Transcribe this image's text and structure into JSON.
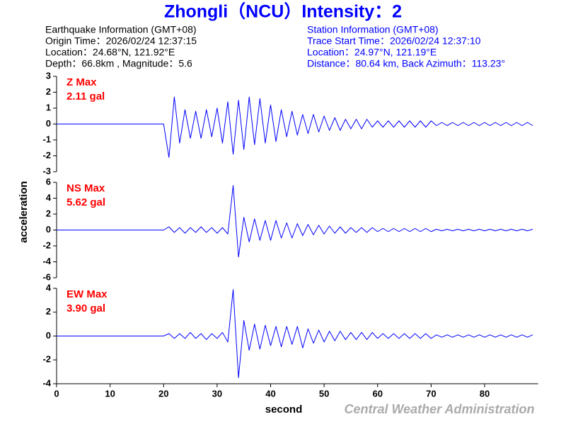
{
  "title": "Zhongli（NCU）Intensity：2",
  "info_left": [
    "Earthquake Information  (GMT+08)",
    "Origin Time：2026/02/24 12:37:15",
    "Location：24.68°N, 121.92°E",
    "Depth：66.8km , Magnitude：5.6"
  ],
  "info_right": [
    "Station Information  (GMT+08)",
    "Trace Start Time：2026/02/24 12:37:10",
    "Location：24.97°N, 121.19°E",
    "Distance：80.64 km, Back Azimuth：113.23°"
  ],
  "ylabel": "acceleration",
  "xlabel": "second",
  "credit": "Central Weather Administration",
  "chart_data": [
    {
      "type": "line",
      "label": "Z Max",
      "max_label": "2.11 gal",
      "color": "#0000ff",
      "label_color": "#ff0000",
      "xlim": [
        0,
        90
      ],
      "ylim": [
        -3,
        3
      ],
      "yticks": [
        -3,
        -2,
        -1,
        0,
        1,
        2,
        3
      ],
      "x": [
        0,
        20,
        21,
        22,
        23,
        24,
        25,
        26,
        27,
        28,
        29,
        30,
        31,
        32,
        33,
        34,
        35,
        36,
        37,
        38,
        39,
        40,
        41,
        42,
        43,
        44,
        45,
        46,
        47,
        48,
        49,
        50,
        51,
        52,
        53,
        54,
        55,
        56,
        57,
        58,
        59,
        60,
        61,
        62,
        63,
        64,
        65,
        66,
        67,
        68,
        69,
        70,
        71,
        72,
        73,
        74,
        75,
        76,
        77,
        78,
        79,
        80,
        81,
        82,
        83,
        84,
        85,
        86,
        87,
        88,
        89
      ],
      "values": [
        0,
        0,
        -2.1,
        1.7,
        -1.2,
        0.9,
        -0.9,
        0.8,
        -0.9,
        0.9,
        -0.8,
        1.0,
        -1.2,
        1.4,
        -1.9,
        1.5,
        -1.6,
        1.7,
        -1.3,
        1.6,
        -1.2,
        1.2,
        -1.1,
        0.9,
        -0.8,
        0.8,
        -0.7,
        0.6,
        -0.6,
        0.6,
        -0.5,
        0.5,
        -0.4,
        0.4,
        -0.4,
        0.3,
        -0.3,
        0.3,
        -0.3,
        0.3,
        -0.2,
        0.2,
        -0.2,
        0.2,
        -0.2,
        0.2,
        -0.2,
        0.2,
        -0.2,
        0.2,
        -0.2,
        0.2,
        -0.1,
        0.1,
        -0.1,
        0.1,
        -0.1,
        0.1,
        -0.1,
        0.1,
        -0.1,
        0.1,
        -0.1,
        0.1,
        -0.1,
        0.1,
        -0.1,
        0.1,
        -0.1,
        0.1,
        -0.1
      ]
    },
    {
      "type": "line",
      "label": "NS Max",
      "max_label": "5.62 gal",
      "color": "#0000ff",
      "label_color": "#ff0000",
      "xlim": [
        0,
        90
      ],
      "ylim": [
        -6,
        6
      ],
      "yticks": [
        -6,
        -4,
        -2,
        0,
        2,
        4,
        6
      ],
      "x": [
        0,
        20,
        21,
        22,
        23,
        24,
        25,
        26,
        27,
        28,
        29,
        30,
        31,
        32,
        33,
        34,
        35,
        36,
        37,
        38,
        39,
        40,
        41,
        42,
        43,
        44,
        45,
        46,
        47,
        48,
        49,
        50,
        51,
        52,
        53,
        54,
        55,
        56,
        57,
        58,
        59,
        60,
        61,
        62,
        63,
        64,
        65,
        66,
        67,
        68,
        69,
        70,
        71,
        72,
        73,
        74,
        75,
        76,
        77,
        78,
        79,
        80,
        81,
        82,
        83,
        84,
        85,
        86,
        87,
        88,
        89
      ],
      "values": [
        0,
        0,
        0.4,
        -0.3,
        0.3,
        -0.4,
        0.3,
        -0.3,
        0.4,
        -0.3,
        0.3,
        -0.4,
        0.3,
        -0.5,
        5.6,
        -3.4,
        1.6,
        -1.5,
        1.4,
        -1.3,
        1.2,
        -1.3,
        1.2,
        -1.0,
        0.9,
        -1.0,
        0.8,
        -0.7,
        0.7,
        -0.6,
        0.6,
        -0.5,
        0.5,
        -0.4,
        0.4,
        -0.4,
        0.3,
        -0.3,
        0.3,
        -0.3,
        0.3,
        -0.2,
        0.2,
        -0.2,
        0.2,
        -0.2,
        0.2,
        -0.2,
        0.2,
        -0.2,
        0.2,
        -0.2,
        0.1,
        -0.1,
        0.1,
        -0.1,
        0.1,
        -0.1,
        0.1,
        -0.1,
        0.1,
        -0.1,
        0.1,
        -0.1,
        0.1,
        -0.1,
        0.1,
        -0.1,
        0.1,
        -0.1,
        0.1
      ]
    },
    {
      "type": "line",
      "label": "EW Max",
      "max_label": "3.90 gal",
      "color": "#0000ff",
      "label_color": "#ff0000",
      "xlim": [
        0,
        90
      ],
      "ylim": [
        -4,
        4
      ],
      "yticks": [
        -4,
        -2,
        0,
        2,
        4
      ],
      "xticks": [
        0,
        10,
        20,
        30,
        40,
        50,
        60,
        70,
        80
      ],
      "x": [
        0,
        20,
        21,
        22,
        23,
        24,
        25,
        26,
        27,
        28,
        29,
        30,
        31,
        32,
        33,
        34,
        35,
        36,
        37,
        38,
        39,
        40,
        41,
        42,
        43,
        44,
        45,
        46,
        47,
        48,
        49,
        50,
        51,
        52,
        53,
        54,
        55,
        56,
        57,
        58,
        59,
        60,
        61,
        62,
        63,
        64,
        65,
        66,
        67,
        68,
        69,
        70,
        71,
        72,
        73,
        74,
        75,
        76,
        77,
        78,
        79,
        80,
        81,
        82,
        83,
        84,
        85,
        86,
        87,
        88,
        89
      ],
      "values": [
        0,
        0,
        0.2,
        -0.2,
        0.2,
        -0.2,
        0.3,
        -0.2,
        0.2,
        -0.3,
        0.2,
        -0.2,
        0.3,
        -0.5,
        3.9,
        -3.5,
        1.3,
        -1.2,
        1.0,
        -1.1,
        0.9,
        -0.8,
        0.8,
        -0.9,
        0.8,
        -0.7,
        0.8,
        -1.0,
        0.6,
        -0.6,
        0.5,
        -0.5,
        0.4,
        -0.4,
        0.4,
        -0.3,
        0.3,
        -0.3,
        0.3,
        -0.3,
        0.3,
        -0.2,
        0.2,
        -0.2,
        0.2,
        -0.2,
        0.2,
        -0.2,
        0.2,
        -0.2,
        0.2,
        -0.2,
        0.1,
        -0.1,
        0.1,
        -0.1,
        0.1,
        -0.1,
        0.1,
        -0.1,
        0.1,
        -0.1,
        0.1,
        -0.1,
        0.1,
        -0.1,
        0.1,
        -0.1,
        0.1,
        -0.1,
        0.1
      ]
    }
  ]
}
